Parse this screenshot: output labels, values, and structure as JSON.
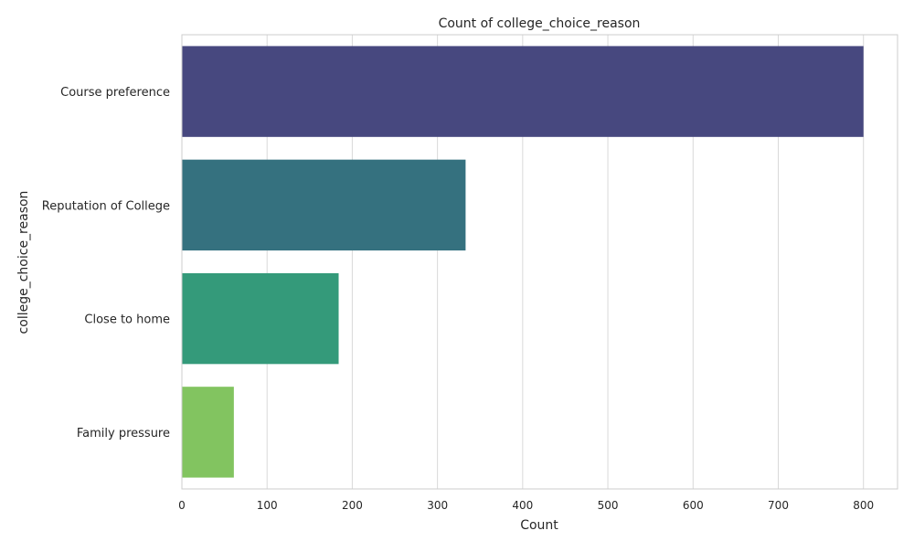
{
  "chart_data": {
    "type": "bar",
    "orientation": "horizontal",
    "title": "Count of college_choice_reason",
    "xlabel": "Count",
    "ylabel": "college_choice_reason",
    "categories": [
      "Course preference",
      "Reputation of College",
      "Close to home",
      "Family pressure"
    ],
    "values": [
      800,
      333,
      184,
      61
    ],
    "colors": [
      "#47487f",
      "#35717f",
      "#349a7a",
      "#82c460"
    ],
    "xlim": [
      0,
      840
    ],
    "xticks": [
      0,
      100,
      200,
      300,
      400,
      500,
      600,
      700,
      800
    ],
    "grid": "vertical",
    "legend": "none"
  }
}
